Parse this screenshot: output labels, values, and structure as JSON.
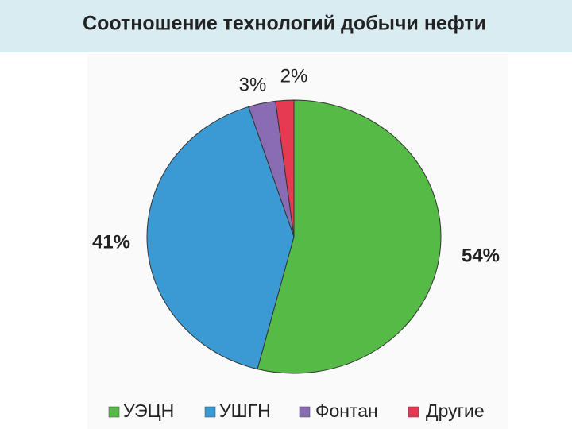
{
  "chart_data": {
    "type": "pie",
    "title": "Соотношение технологий добычи нефти",
    "categories": [
      "УЭЦН",
      "УШГН",
      "Фонтан",
      "Другие"
    ],
    "values": [
      54,
      41,
      3,
      2
    ],
    "value_labels": [
      "54%",
      "41%",
      "3%",
      "2%"
    ],
    "colors": [
      "#56bb46",
      "#3b9ad4",
      "#8a6cb4",
      "#e63a52"
    ]
  }
}
